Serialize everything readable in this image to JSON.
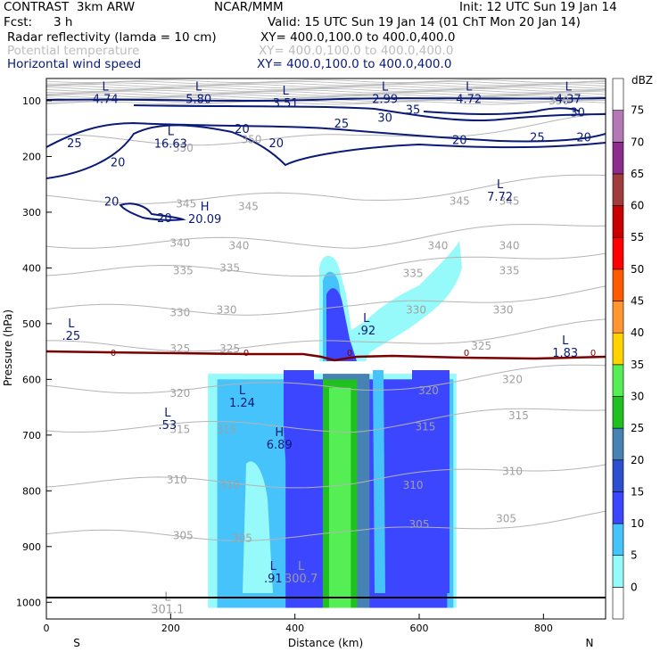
{
  "header": {
    "left_line1": "CONTRAST  3km ARW",
    "center_line1": "NCAR/MMM",
    "right_line1": "Init: 12 UTC Sun 19 Jan 14",
    "fcst_label": "Fcst:",
    "fcst_value": "3 h",
    "valid": "Valid: 15 UTC Sun 19 Jan 14 (01 ChT Mon 20 Jan 14)",
    "field1_name": "Radar reflectivity (lamda = 10 cm)",
    "field1_xy": "XY= 400.0,100.0 to 400.0,400.0",
    "field2_name": "Potential temperature",
    "field2_xy": "XY= 400.0,100.0 to 400.0,400.0",
    "field3_name": "Horizontal wind speed",
    "field3_xy": "XY= 400.0,100.0 to 400.0,400.0"
  },
  "chart_data": {
    "type": "cross-section-contour",
    "xlabel": "Distance (km)",
    "ylabel": "Pressure (hPa)",
    "x_ticks": [
      0,
      200,
      400,
      600,
      800
    ],
    "y_ticks": [
      100,
      200,
      300,
      400,
      500,
      600,
      700,
      800,
      900,
      1000
    ],
    "xlim": [
      0,
      900
    ],
    "ylim": [
      1030,
      60
    ],
    "x_end_labels": {
      "left": "S",
      "right": "N"
    },
    "colorbar": {
      "unit": "dBZ",
      "ticks": [
        0,
        5,
        10,
        15,
        20,
        25,
        30,
        35,
        40,
        45,
        50,
        55,
        60,
        65,
        70,
        75
      ],
      "colors": [
        "#ffffff",
        "#96fafa",
        "#46c3fa",
        "#3c46ff",
        "#2c4fd0",
        "#4682b4",
        "#20c020",
        "#55ee55",
        "#ffd200",
        "#ff9632",
        "#ff5a00",
        "#ff0000",
        "#c80000",
        "#a03c3c",
        "#8c2c8c",
        "#b478b4",
        "#ffffff"
      ]
    },
    "reflectivity_blocks": [
      {
        "dbz": 5,
        "x": [
          260,
          660
        ],
        "p": [
          590,
          1010
        ]
      },
      {
        "dbz": 10,
        "x": [
          275,
          655
        ],
        "p": [
          600,
          1010
        ]
      },
      {
        "dbz": 15,
        "x": [
          385,
          645
        ],
        "p": [
          600,
          1010
        ]
      },
      {
        "dbz": 25,
        "x": [
          445,
          520
        ],
        "p": [
          590,
          1010
        ]
      },
      {
        "dbz": 30,
        "x": [
          445,
          500
        ],
        "p": [
          600,
          1010
        ]
      },
      {
        "dbz": 35,
        "x": [
          455,
          490
        ],
        "p": [
          615,
          1010
        ]
      }
    ],
    "theta_contours": [
      350,
      345,
      340,
      335,
      330,
      325,
      320,
      315,
      310,
      305
    ],
    "wind_contours": [
      20,
      25,
      30,
      35
    ],
    "freezing_level_label": "0",
    "high_low_labels": [
      {
        "t": "L",
        "v": "4.74",
        "x": 95,
        "p": 85
      },
      {
        "t": "L",
        "v": "5.80",
        "x": 245,
        "p": 85
      },
      {
        "t": "L",
        "v": "3.51",
        "x": 385,
        "p": 92
      },
      {
        "t": "L",
        "v": "2.99",
        "x": 545,
        "p": 85
      },
      {
        "t": "L",
        "v": "4.72",
        "x": 680,
        "p": 85
      },
      {
        "t": "L",
        "v": "4.37",
        "x": 840,
        "p": 85
      },
      {
        "t": "L",
        "v": "16.63",
        "x": 200,
        "p": 165
      },
      {
        "t": "L",
        "v": "7.72",
        "x": 730,
        "p": 260
      },
      {
        "t": "H",
        "v": "20.09",
        "x": 255,
        "p": 300
      },
      {
        "t": "L",
        "v": ".25",
        "x": 40,
        "p": 510
      },
      {
        "t": "L",
        "v": ".92",
        "x": 515,
        "p": 500
      },
      {
        "t": "L",
        "v": "1.83",
        "x": 835,
        "p": 540
      },
      {
        "t": "L",
        "v": "1.24",
        "x": 315,
        "p": 630
      },
      {
        "t": "L",
        "v": ".53",
        "x": 195,
        "p": 670
      },
      {
        "t": "H",
        "v": "6.89",
        "x": 375,
        "p": 705
      },
      {
        "t": "L",
        "v": ".91",
        "x": 365,
        "p": 945
      },
      {
        "t": "L",
        "v": "300.7",
        "x": 410,
        "p": 945
      },
      {
        "t": "L",
        "v": "301.1",
        "x": 195,
        "p": 1000
      }
    ],
    "theta_labels": [
      {
        "v": "350",
        "x": 220,
        "p": 185
      },
      {
        "v": "350",
        "x": 330,
        "p": 170
      },
      {
        "v": "350",
        "x": 825,
        "p": 100
      },
      {
        "v": "345",
        "x": 225,
        "p": 285
      },
      {
        "v": "345",
        "x": 325,
        "p": 290
      },
      {
        "v": "345",
        "x": 665,
        "p": 280
      },
      {
        "v": "345",
        "x": 745,
        "p": 280
      },
      {
        "v": "340",
        "x": 215,
        "p": 355
      },
      {
        "v": "340",
        "x": 310,
        "p": 360
      },
      {
        "v": "340",
        "x": 630,
        "p": 360
      },
      {
        "v": "340",
        "x": 745,
        "p": 360
      },
      {
        "v": "335",
        "x": 220,
        "p": 405
      },
      {
        "v": "335",
        "x": 295,
        "p": 400
      },
      {
        "v": "335",
        "x": 590,
        "p": 410
      },
      {
        "v": "335",
        "x": 745,
        "p": 405
      },
      {
        "v": "330",
        "x": 215,
        "p": 480
      },
      {
        "v": "330",
        "x": 290,
        "p": 475
      },
      {
        "v": "330",
        "x": 595,
        "p": 475
      },
      {
        "v": "330",
        "x": 735,
        "p": 475
      },
      {
        "v": "325",
        "x": 215,
        "p": 545
      },
      {
        "v": "325",
        "x": 295,
        "p": 545
      },
      {
        "v": "325",
        "x": 700,
        "p": 540
      },
      {
        "v": "320",
        "x": 215,
        "p": 625
      },
      {
        "v": "320",
        "x": 615,
        "p": 620
      },
      {
        "v": "320",
        "x": 750,
        "p": 600
      },
      {
        "v": "315",
        "x": 215,
        "p": 690
      },
      {
        "v": "315",
        "x": 290,
        "p": 690
      },
      {
        "v": "315",
        "x": 610,
        "p": 685
      },
      {
        "v": "315",
        "x": 760,
        "p": 665
      },
      {
        "v": "310",
        "x": 210,
        "p": 780
      },
      {
        "v": "310",
        "x": 295,
        "p": 790
      },
      {
        "v": "310",
        "x": 590,
        "p": 790
      },
      {
        "v": "310",
        "x": 750,
        "p": 765
      },
      {
        "v": "305",
        "x": 220,
        "p": 880
      },
      {
        "v": "305",
        "x": 315,
        "p": 885
      },
      {
        "v": "305",
        "x": 600,
        "p": 860
      },
      {
        "v": "305",
        "x": 740,
        "p": 850
      }
    ],
    "wind_labels": [
      {
        "v": "25",
        "x": 45,
        "p": 175
      },
      {
        "v": "20",
        "x": 115,
        "p": 210
      },
      {
        "v": "20",
        "x": 315,
        "p": 150
      },
      {
        "v": "20",
        "x": 370,
        "p": 175
      },
      {
        "v": "25",
        "x": 475,
        "p": 140
      },
      {
        "v": "30",
        "x": 545,
        "p": 130
      },
      {
        "v": "35",
        "x": 590,
        "p": 115
      },
      {
        "v": "30",
        "x": 855,
        "p": 120
      },
      {
        "v": "25",
        "x": 790,
        "p": 165
      },
      {
        "v": "20",
        "x": 665,
        "p": 170
      },
      {
        "v": "20",
        "x": 865,
        "p": 165
      },
      {
        "v": "20",
        "x": 105,
        "p": 280
      },
      {
        "v": "20",
        "x": 190,
        "p": 310
      }
    ]
  }
}
